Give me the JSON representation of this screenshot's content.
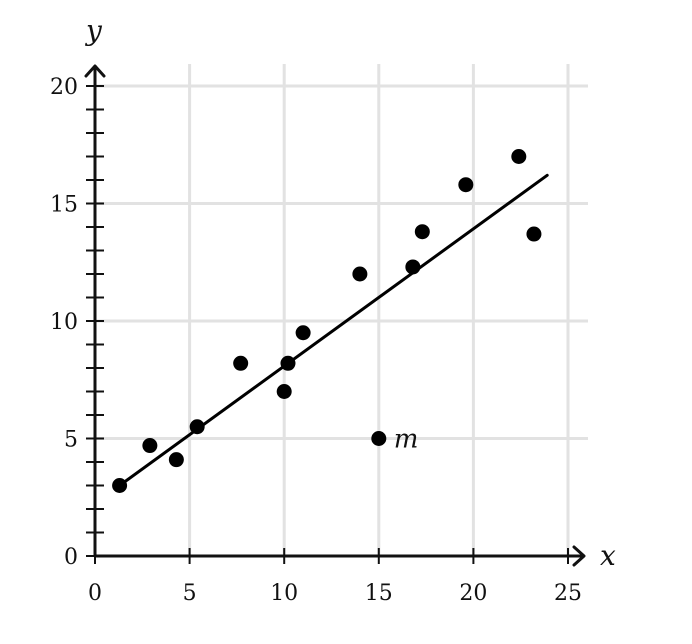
{
  "chart_data": {
    "type": "scatter",
    "title": "",
    "xlabel": "x",
    "ylabel": "y",
    "xlim": [
      0,
      25
    ],
    "ylim": [
      0,
      20
    ],
    "x_ticks": [
      "0",
      "5",
      "10",
      "15",
      "20",
      "25"
    ],
    "y_ticks": [
      "0",
      "5",
      "10",
      "15",
      "20"
    ],
    "minor_tick_step_y": 1,
    "grid": true,
    "series": [
      {
        "points": [
          {
            "x": 1.3,
            "y": 3.0
          },
          {
            "x": 2.9,
            "y": 4.7
          },
          {
            "x": 4.3,
            "y": 4.1
          },
          {
            "x": 5.4,
            "y": 5.5
          },
          {
            "x": 7.7,
            "y": 8.2
          },
          {
            "x": 10.0,
            "y": 7.0
          },
          {
            "x": 10.2,
            "y": 8.2
          },
          {
            "x": 11.0,
            "y": 9.5
          },
          {
            "x": 14.0,
            "y": 12.0
          },
          {
            "x": 15.0,
            "y": 5.0,
            "label": "m"
          },
          {
            "x": 16.8,
            "y": 12.3
          },
          {
            "x": 17.3,
            "y": 13.8
          },
          {
            "x": 19.6,
            "y": 15.8
          },
          {
            "x": 22.4,
            "y": 17.0
          },
          {
            "x": 23.2,
            "y": 13.7
          }
        ]
      }
    ],
    "trend_line": {
      "x1": 1.3,
      "y1": 3.0,
      "x2": 23.9,
      "y2": 16.2
    },
    "colors": {
      "grid": "#e2e2e2",
      "axis": "#111111",
      "points": "#000000",
      "line": "#000000"
    }
  }
}
